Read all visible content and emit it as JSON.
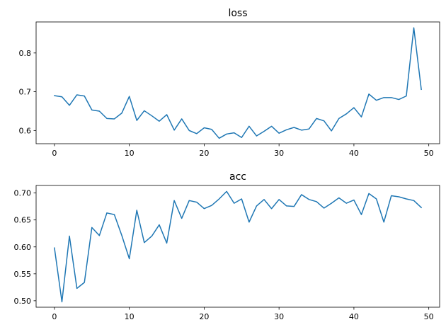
{
  "chart_data": [
    {
      "type": "line",
      "title": "loss",
      "xlabel": "",
      "ylabel": "",
      "color": "#1f77b4",
      "grid": false,
      "x": [
        0,
        1,
        2,
        3,
        4,
        5,
        6,
        7,
        8,
        9,
        10,
        11,
        12,
        13,
        14,
        15,
        16,
        17,
        18,
        19,
        20,
        21,
        22,
        23,
        24,
        25,
        26,
        27,
        28,
        29,
        30,
        31,
        32,
        33,
        34,
        35,
        36,
        37,
        38,
        39,
        40,
        41,
        42,
        43,
        44,
        45,
        46,
        47,
        48,
        49
      ],
      "values": [
        0.69,
        0.687,
        0.665,
        0.692,
        0.689,
        0.653,
        0.65,
        0.631,
        0.63,
        0.645,
        0.688,
        0.626,
        0.651,
        0.638,
        0.624,
        0.641,
        0.601,
        0.63,
        0.6,
        0.592,
        0.607,
        0.603,
        0.58,
        0.591,
        0.594,
        0.582,
        0.611,
        0.586,
        0.598,
        0.611,
        0.593,
        0.602,
        0.608,
        0.601,
        0.604,
        0.631,
        0.625,
        0.599,
        0.631,
        0.643,
        0.659,
        0.635,
        0.694,
        0.678,
        0.685,
        0.685,
        0.68,
        0.689,
        0.865,
        0.706
      ],
      "xlim": [
        -2.45,
        51.45
      ],
      "ylim": [
        0.566,
        0.88
      ],
      "xticks": [
        0,
        10,
        20,
        30,
        40,
        50
      ],
      "xtick_labels": [
        "0",
        "10",
        "20",
        "30",
        "40",
        "50"
      ],
      "yticks": [
        0.6,
        0.7,
        0.8
      ],
      "ytick_labels": [
        "0.6",
        "0.7",
        "0.8"
      ]
    },
    {
      "type": "line",
      "title": "acc",
      "xlabel": "",
      "ylabel": "",
      "color": "#1f77b4",
      "grid": false,
      "x": [
        0,
        1,
        2,
        3,
        4,
        5,
        6,
        7,
        8,
        9,
        10,
        11,
        12,
        13,
        14,
        15,
        16,
        17,
        18,
        19,
        20,
        21,
        22,
        23,
        24,
        25,
        26,
        27,
        28,
        29,
        30,
        31,
        32,
        33,
        34,
        35,
        36,
        37,
        38,
        39,
        40,
        41,
        42,
        43,
        44,
        45,
        46,
        47,
        48,
        49
      ],
      "values": [
        0.598,
        0.498,
        0.62,
        0.523,
        0.534,
        0.636,
        0.621,
        0.663,
        0.66,
        0.621,
        0.578,
        0.668,
        0.608,
        0.62,
        0.641,
        0.607,
        0.686,
        0.653,
        0.686,
        0.683,
        0.671,
        0.677,
        0.689,
        0.703,
        0.681,
        0.689,
        0.646,
        0.676,
        0.688,
        0.671,
        0.688,
        0.676,
        0.675,
        0.697,
        0.688,
        0.684,
        0.672,
        0.681,
        0.691,
        0.681,
        0.687,
        0.66,
        0.699,
        0.689,
        0.646,
        0.695,
        0.693,
        0.689,
        0.686,
        0.673
      ],
      "xlim": [
        -2.45,
        51.45
      ],
      "ylim": [
        0.488,
        0.714
      ],
      "xticks": [
        0,
        10,
        20,
        30,
        40,
        50
      ],
      "xtick_labels": [
        "0",
        "10",
        "20",
        "30",
        "40",
        "50"
      ],
      "yticks": [
        0.5,
        0.55,
        0.6,
        0.65,
        0.7
      ],
      "ytick_labels": [
        "0.50",
        "0.55",
        "0.60",
        "0.65",
        "0.70"
      ]
    }
  ]
}
